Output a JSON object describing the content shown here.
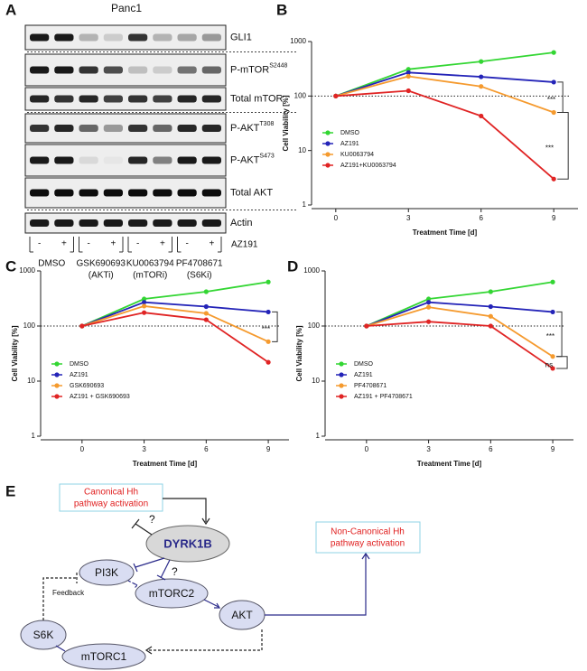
{
  "panel_labels": [
    "A",
    "B",
    "C",
    "D",
    "E"
  ],
  "blot": {
    "title": "Panc1",
    "rows": [
      {
        "text": "GLI1"
      },
      {
        "text": "P-mTOR",
        "sup": "S2448"
      },
      {
        "text": "Total mTOR"
      },
      {
        "text": "P-AKT",
        "sup": "T308"
      },
      {
        "text": "P-AKT",
        "sup": "S473"
      },
      {
        "text": "Total AKT"
      },
      {
        "text": "Actin"
      }
    ],
    "signs": [
      "-",
      "+",
      "-",
      "+",
      "-",
      "+",
      "-",
      "+"
    ],
    "treatment": "AZ191",
    "groups": [
      [
        "DMSO"
      ],
      [
        "GSK690693",
        "(AKTi)"
      ],
      [
        "KU0063794",
        "(mTORi)"
      ],
      [
        "PF4708671",
        "(S6Ki)"
      ]
    ]
  },
  "chart_data": [
    {
      "type": "line",
      "x": [
        0,
        3,
        6,
        9
      ],
      "xlim": [
        -1,
        10
      ],
      "xticks": [
        0,
        3,
        6,
        9
      ],
      "ylim": [
        1,
        1000
      ],
      "yticks": [
        1,
        10,
        100,
        1000
      ],
      "log_y": true,
      "x_label": "Treatment Time [d]",
      "y_label": "Cell Viability [%]",
      "reference_line": 100,
      "legend": "lower left",
      "annotations": [
        "***",
        "***"
      ],
      "series": [
        {
          "name": "DMSO",
          "color": "#33d633",
          "values": [
            100,
            310,
            430,
            630
          ]
        },
        {
          "name": "AZ191",
          "color": "#2424b8",
          "values": [
            100,
            270,
            225,
            180
          ]
        },
        {
          "name": "KU0063794",
          "color": "#f59a2e",
          "values": [
            100,
            230,
            150,
            50
          ]
        },
        {
          "name": "AZ191+KU0063794",
          "color": "#e02424",
          "values": [
            100,
            125,
            43,
            3
          ]
        }
      ]
    },
    {
      "type": "line",
      "x": [
        0,
        3,
        6,
        9
      ],
      "xlim": [
        -2,
        10
      ],
      "xticks": [
        0,
        3,
        6,
        9
      ],
      "ylim": [
        1,
        1000
      ],
      "yticks": [
        1,
        10,
        100,
        1000
      ],
      "log_y": true,
      "x_label": "Treatment Time [d]",
      "y_label": "Cell Viability [%]",
      "reference_line": 100,
      "legend": "lower left",
      "annotations": [
        "***"
      ],
      "series": [
        {
          "name": "DMSO",
          "color": "#33d633",
          "values": [
            100,
            310,
            420,
            630
          ]
        },
        {
          "name": "AZ191",
          "color": "#2424b8",
          "values": [
            100,
            270,
            225,
            180
          ]
        },
        {
          "name": "GSK690693",
          "color": "#f59a2e",
          "values": [
            100,
            230,
            170,
            52
          ]
        },
        {
          "name": "AZ191 + GSK690693",
          "color": "#e02424",
          "values": [
            100,
            175,
            130,
            22
          ]
        }
      ]
    },
    {
      "type": "line",
      "x": [
        0,
        3,
        6,
        9
      ],
      "xlim": [
        -2,
        10
      ],
      "xticks": [
        0,
        3,
        6,
        9
      ],
      "ylim": [
        1,
        1000
      ],
      "yticks": [
        1,
        10,
        100,
        1000
      ],
      "log_y": true,
      "x_label": "Treatment Time [d]",
      "y_label": "Cell Viability [%]",
      "reference_line": 100,
      "legend": "lower left",
      "annotations": [
        "***",
        "ns"
      ],
      "series": [
        {
          "name": "DMSO",
          "color": "#33d633",
          "values": [
            100,
            310,
            420,
            630
          ]
        },
        {
          "name": "AZ191",
          "color": "#2424b8",
          "values": [
            100,
            270,
            225,
            180
          ]
        },
        {
          "name": "PF4708671",
          "color": "#f59a2e",
          "values": [
            100,
            220,
            150,
            28
          ]
        },
        {
          "name": "AZ191 + PF4708671",
          "color": "#e02424",
          "values": [
            100,
            120,
            100,
            17
          ]
        }
      ]
    }
  ],
  "diagram": {
    "canonical": [
      "Canonical Hh",
      "pathway activation"
    ],
    "dyrk1b": "DYRK1B",
    "noncanonical": [
      "Non-Canonical Hh",
      "pathway activation"
    ],
    "pi3k": "PI3K",
    "mtorc2": "mTORC2",
    "akt": "AKT",
    "s6k": "S6K",
    "mtorc1": "mTORC1",
    "feedback": "Feedback",
    "q1": "?",
    "q2": "?"
  }
}
